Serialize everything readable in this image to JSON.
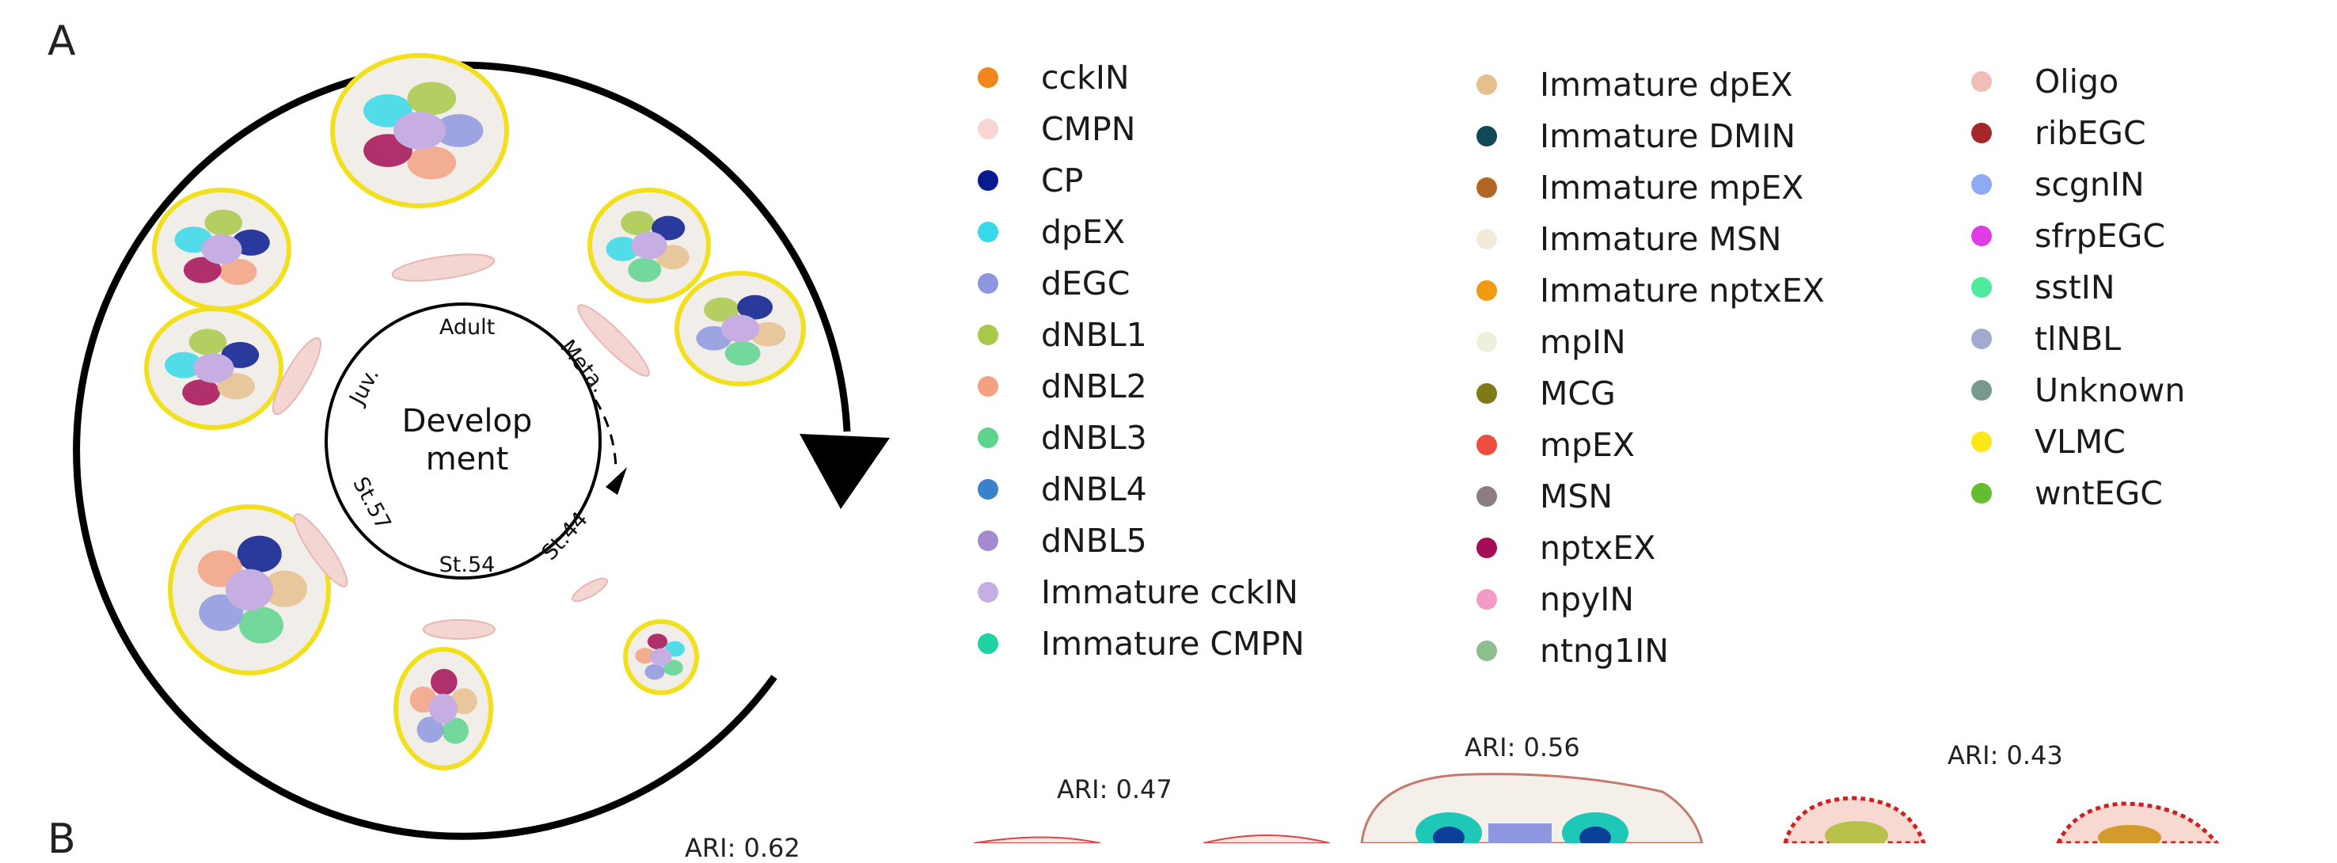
{
  "panel_labels": {
    "a": "A",
    "b": "B"
  },
  "cycle": {
    "center": "Develop\nment",
    "stages": [
      "Adult",
      "Meta.",
      "St.44",
      "St.54",
      "St.57",
      "Juv."
    ]
  },
  "legend": {
    "columns": [
      [
        {
          "label": "cckIN",
          "color": "#F0861C"
        },
        {
          "label": "CMPN",
          "color": "#F8D6D2"
        },
        {
          "label": "CP",
          "color": "#071A8E"
        },
        {
          "label": "dpEX",
          "color": "#36D8EA"
        },
        {
          "label": "dEGC",
          "color": "#8E96E0"
        },
        {
          "label": "dNBL1",
          "color": "#A9C84A"
        },
        {
          "label": "dNBL2",
          "color": "#F2A182"
        },
        {
          "label": "dNBL3",
          "color": "#5ED38E"
        },
        {
          "label": "dNBL4",
          "color": "#3782CB"
        },
        {
          "label": "dNBL5",
          "color": "#A58ACF"
        },
        {
          "label": "Immature cckIN",
          "color": "#C7AEE2"
        },
        {
          "label": "Immature CMPN",
          "color": "#1FD2A1"
        }
      ],
      [
        {
          "label": "Immature dpEX",
          "color": "#E6C08F"
        },
        {
          "label": "Immature DMIN",
          "color": "#114858"
        },
        {
          "label": "Immature mpEX",
          "color": "#B46626"
        },
        {
          "label": "Immature MSN",
          "color": "#F4EADA"
        },
        {
          "label": "Immature nptxEX",
          "color": "#F09B12"
        },
        {
          "label": "mpIN",
          "color": "#EDF0DD"
        },
        {
          "label": "MCG",
          "color": "#7C7A19"
        },
        {
          "label": "mpEX",
          "color": "#EE4E3E"
        },
        {
          "label": "MSN",
          "color": "#8E7C83"
        },
        {
          "label": "nptxEX",
          "color": "#A30E55"
        },
        {
          "label": "npyIN",
          "color": "#F49AC7"
        },
        {
          "label": "ntng1IN",
          "color": "#8DBE8E"
        }
      ],
      [
        {
          "label": "Oligo",
          "color": "#F1BDB8"
        },
        {
          "label": "ribEGC",
          "color": "#A6262A"
        },
        {
          "label": "scgnIN",
          "color": "#8DAAF2"
        },
        {
          "label": "sfrpEGC",
          "color": "#DE3CE5"
        },
        {
          "label": "sstIN",
          "color": "#4EEA9E"
        },
        {
          "label": "tlNBL",
          "color": "#A3AACF"
        },
        {
          "label": "Unknown",
          "color": "#789A8E"
        },
        {
          "label": "VLMC",
          "color": "#FAE81A"
        },
        {
          "label": "wntEGC",
          "color": "#62BE2F"
        }
      ]
    ]
  },
  "ari_labels": [
    "ARI: 0.47",
    "ARI: 0.56",
    "ARI: 0.43",
    "ARI: 0.62"
  ]
}
